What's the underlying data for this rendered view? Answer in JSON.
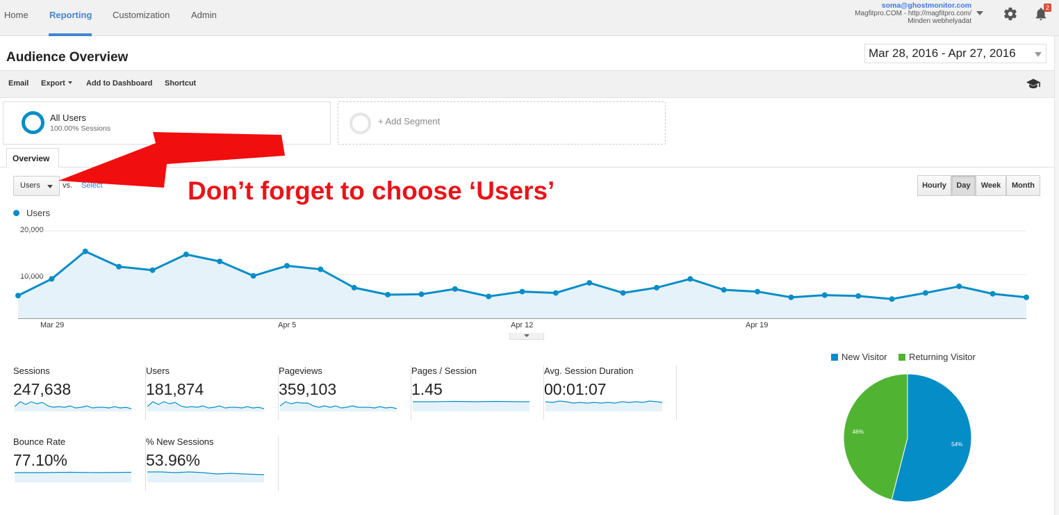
{
  "nav": {
    "tabs": [
      "Home",
      "Reporting",
      "Customization",
      "Admin"
    ],
    "account_email": "soma@ghostmonitor.com",
    "account_property": "Magfitpro.COM - http://magfitpro.com/",
    "account_view": "Minden webhelyadat",
    "notifications": "2",
    "accent_color": "#4285d4"
  },
  "header": {
    "title": "Audience Overview",
    "date_range": "Mar 28, 2016 - Apr 27, 2016"
  },
  "toolbar": {
    "email": "Email",
    "export": "Export",
    "add_dashboard": "Add to Dashboard",
    "shortcut": "Shortcut"
  },
  "segments": {
    "name": "All Users",
    "sub": "100.00% Sessions",
    "add": "+ Add Segment"
  },
  "tabs": {
    "overview": "Overview"
  },
  "controls": {
    "metric": "Users",
    "vs": "vs.",
    "vs_select": "Select",
    "granularity": [
      "Hourly",
      "Day",
      "Week",
      "Month"
    ],
    "active_granularity": "Day"
  },
  "annotation": {
    "text": "Don’t forget to choose ‘Users’",
    "color": "#e8141a"
  },
  "chart_data": {
    "type": "area",
    "series": [
      {
        "name": "Users",
        "color": "#058dc7",
        "values": [
          5200,
          9000,
          15300,
          11800,
          11000,
          14600,
          13000,
          9700,
          12000,
          11200,
          7000,
          5400,
          5500,
          6700,
          5000,
          6100,
          5800,
          8100,
          5800,
          7000,
          9000,
          6500,
          6100,
          4800,
          5300,
          5100,
          4400,
          5800,
          7300,
          5600,
          4800
        ]
      }
    ],
    "x_start": "2016-03-28",
    "x_end": "2016-04-27",
    "x_ticks": [
      "Mar 29",
      "Apr 5",
      "Apr 12",
      "Apr 19"
    ],
    "y_ticks": [
      "20,000",
      "10,000"
    ],
    "ylim": [
      0,
      20000
    ],
    "grid": true
  },
  "metrics": [
    {
      "label": "Sessions",
      "value": "247,638"
    },
    {
      "label": "Users",
      "value": "181,874"
    },
    {
      "label": "Pageviews",
      "value": "359,103"
    },
    {
      "label": "Pages / Session",
      "value": "1.45"
    },
    {
      "label": "Avg. Session Duration",
      "value": "00:01:07"
    },
    {
      "label": "Bounce Rate",
      "value": "77.10%"
    },
    {
      "label": "% New Sessions",
      "value": "53.96%"
    }
  ],
  "pie": {
    "legend": [
      "New Visitor",
      "Returning Visitor"
    ],
    "colors": [
      "#058dc7",
      "#50b432"
    ],
    "values": [
      54,
      46
    ],
    "labels": [
      "54%",
      "46%"
    ]
  }
}
